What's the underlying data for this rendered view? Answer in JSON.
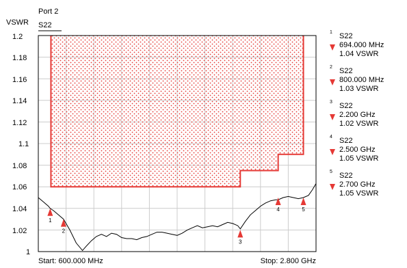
{
  "header": {
    "port_label": "Port 2",
    "param_label": "S22"
  },
  "footer": {
    "start_label": "Start: 600.000 MHz",
    "stop_label": "Stop: 2.800 GHz"
  },
  "colors": {
    "limit": "#e53935",
    "trace": "#000000",
    "grid": "#cccccc",
    "marker": "#e53935"
  },
  "markers": [
    {
      "num": "1",
      "param": "S22",
      "freq": "694.000 MHz",
      "value": "1.04 VSWR"
    },
    {
      "num": "2",
      "param": "S22",
      "freq": "800.000 MHz",
      "value": "1.03 VSWR"
    },
    {
      "num": "3",
      "param": "S22",
      "freq": "2.200 GHz",
      "value": "1.02 VSWR"
    },
    {
      "num": "4",
      "param": "S22",
      "freq": "2.500 GHz",
      "value": "1.05 VSWR"
    },
    {
      "num": "5",
      "param": "S22",
      "freq": "2.700 GHz",
      "value": "1.05 VSWR"
    }
  ],
  "chart_data": {
    "type": "line",
    "ylabel": "VSWR",
    "xlim": [
      600,
      2800
    ],
    "ylim": [
      1.0,
      1.2
    ],
    "x_unit": "MHz",
    "y_ticks": [
      "1.2",
      "1.18",
      "1.16",
      "1.14",
      "1.12",
      "1.1",
      "1.08",
      "1.06",
      "1.04",
      "1.02",
      "1"
    ],
    "grid": true,
    "x_divisions": 10,
    "series": [
      {
        "values_mhz_vswr": [
          [
            600,
            1.05
          ],
          [
            640,
            1.046
          ],
          [
            680,
            1.042
          ],
          [
            694,
            1.04
          ],
          [
            720,
            1.038
          ],
          [
            760,
            1.034
          ],
          [
            800,
            1.03
          ],
          [
            850,
            1.02
          ],
          [
            900,
            1.008
          ],
          [
            950,
            1.001
          ],
          [
            980,
            1.005
          ],
          [
            1020,
            1.01
          ],
          [
            1060,
            1.014
          ],
          [
            1100,
            1.016
          ],
          [
            1140,
            1.014
          ],
          [
            1180,
            1.017
          ],
          [
            1220,
            1.016
          ],
          [
            1260,
            1.013
          ],
          [
            1300,
            1.012
          ],
          [
            1340,
            1.012
          ],
          [
            1380,
            1.011
          ],
          [
            1420,
            1.013
          ],
          [
            1460,
            1.014
          ],
          [
            1500,
            1.016
          ],
          [
            1540,
            1.018
          ],
          [
            1580,
            1.018
          ],
          [
            1620,
            1.017
          ],
          [
            1660,
            1.016
          ],
          [
            1700,
            1.015
          ],
          [
            1740,
            1.017
          ],
          [
            1780,
            1.02
          ],
          [
            1820,
            1.022
          ],
          [
            1860,
            1.024
          ],
          [
            1900,
            1.022
          ],
          [
            1940,
            1.023
          ],
          [
            1980,
            1.024
          ],
          [
            2020,
            1.023
          ],
          [
            2060,
            1.025
          ],
          [
            2100,
            1.027
          ],
          [
            2140,
            1.026
          ],
          [
            2180,
            1.024
          ],
          [
            2200,
            1.021
          ],
          [
            2240,
            1.028
          ],
          [
            2280,
            1.034
          ],
          [
            2320,
            1.038
          ],
          [
            2360,
            1.042
          ],
          [
            2400,
            1.045
          ],
          [
            2440,
            1.047
          ],
          [
            2480,
            1.048
          ],
          [
            2500,
            1.048
          ],
          [
            2540,
            1.05
          ],
          [
            2580,
            1.051
          ],
          [
            2620,
            1.05
          ],
          [
            2660,
            1.049
          ],
          [
            2700,
            1.05
          ],
          [
            2740,
            1.052
          ],
          [
            2770,
            1.057
          ],
          [
            2800,
            1.063
          ]
        ]
      }
    ],
    "limit_line_mhz_vswr": [
      [
        700,
        1.2
      ],
      [
        700,
        1.06
      ],
      [
        2200,
        1.06
      ],
      [
        2200,
        1.075
      ],
      [
        2500,
        1.075
      ],
      [
        2500,
        1.09
      ],
      [
        2700,
        1.09
      ],
      [
        2700,
        1.2
      ]
    ],
    "marker_points": [
      {
        "num": "1",
        "x": 694,
        "y": 1.04
      },
      {
        "num": "2",
        "x": 800,
        "y": 1.03
      },
      {
        "num": "3",
        "x": 2200,
        "y": 1.02
      },
      {
        "num": "4",
        "x": 2500,
        "y": 1.05
      },
      {
        "num": "5",
        "x": 2700,
        "y": 1.05
      }
    ]
  }
}
